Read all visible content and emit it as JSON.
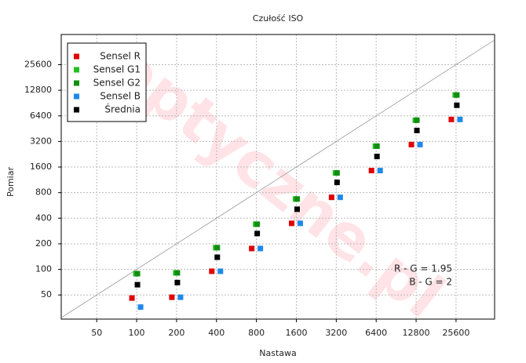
{
  "chart_data": {
    "type": "scatter",
    "title": "Czułość ISO",
    "x_label": "Nastawa",
    "y_label": "Pomiar",
    "watermark": "optyczne.pl",
    "x": [
      100,
      200,
      400,
      800,
      1600,
      3200,
      6400,
      12800,
      25600
    ],
    "series": [
      {
        "name": "Sensel R",
        "color": "#e00000",
        "values": [
          46,
          47,
          95,
          176,
          348,
          704,
          1454,
          2940,
          5810
        ]
      },
      {
        "name": "Sensel G1",
        "color": "#22c022",
        "values": [
          89,
          91,
          180,
          340,
          673,
          1364,
          2815,
          5690,
          11260
        ]
      },
      {
        "name": "Sensel G2",
        "color": "#108e10",
        "values": [
          89,
          91,
          180,
          340,
          673,
          1364,
          2815,
          5690,
          11260
        ]
      },
      {
        "name": "Sensel B",
        "color": "#1e88e8",
        "values": [
          36,
          47,
          95,
          176,
          348,
          704,
          1454,
          2940,
          5810
        ]
      },
      {
        "name": "Średnia",
        "color": "#000000",
        "values": [
          66,
          70,
          139,
          264,
          510,
          1056,
          2130,
          4310,
          8530
        ]
      }
    ],
    "annotations": [
      "R - G = 1.95",
      "B - G = 2"
    ],
    "xlim": [
      27,
      50000
    ],
    "ylim": [
      26,
      58000
    ],
    "xticks": [
      50,
      100,
      200,
      400,
      800,
      1600,
      3200,
      6400,
      12800,
      25600
    ],
    "yticks": [
      50,
      100,
      200,
      400,
      800,
      1600,
      3200,
      6400,
      12800,
      25600
    ],
    "log_x": true,
    "log_y": true,
    "grid": true,
    "diagonal": true,
    "legend": "upper left"
  }
}
